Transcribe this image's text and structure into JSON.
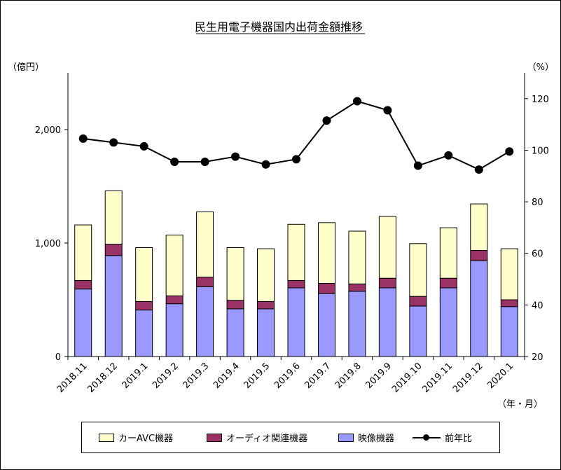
{
  "chart_data": {
    "type": "bar+line",
    "title": "民生用電子機器国内出荷金額推移",
    "y_left_unit": "（億円）",
    "y_right_unit": "（%）",
    "x_unit": "（年・月）",
    "y_left_ticks": [
      "0",
      "1,000",
      "2,000"
    ],
    "y_right_ticks": [
      "20",
      "40",
      "60",
      "80",
      "100",
      "120"
    ],
    "y_left_range": [
      0,
      2500
    ],
    "y_right_range": [
      20,
      130
    ],
    "categories": [
      "2018.11",
      "2018.12",
      "2019.1",
      "2019.2",
      "2019.3",
      "2019.4",
      "2019.5",
      "2019.6",
      "2019.7",
      "2019.8",
      "2019.9",
      "2019.10",
      "2019.11",
      "2019.12",
      "2020.1"
    ],
    "series": [
      {
        "name": "映像機器",
        "type": "bar",
        "color": "#9999ff",
        "values": [
          595,
          890,
          410,
          465,
          615,
          420,
          420,
          605,
          555,
          575,
          605,
          445,
          605,
          845,
          440
        ]
      },
      {
        "name": "オーディオ関連機器",
        "type": "bar",
        "color": "#993366",
        "values": [
          75,
          100,
          75,
          70,
          85,
          75,
          65,
          65,
          90,
          65,
          85,
          85,
          85,
          90,
          60
        ]
      },
      {
        "name": "カーAVC機器",
        "type": "bar",
        "color": "#ffffcc",
        "values": [
          490,
          470,
          475,
          535,
          575,
          465,
          465,
          495,
          535,
          465,
          545,
          465,
          445,
          410,
          450
        ]
      },
      {
        "name": "前年比",
        "type": "line",
        "axis": "right",
        "color": "#000000",
        "values": [
          104.5,
          103,
          101.5,
          95.5,
          95.5,
          97.5,
          94.5,
          96.5,
          111.5,
          119,
          115.5,
          94,
          98,
          92.5,
          99.5
        ]
      }
    ],
    "legend": {
      "position": "bottom",
      "items": [
        {
          "label": "カーAVC機器",
          "kind": "bar",
          "color": "#ffffcc"
        },
        {
          "label": "オーディオ関連機器",
          "kind": "bar",
          "color": "#993366"
        },
        {
          "label": "映像機器",
          "kind": "bar",
          "color": "#9999ff"
        },
        {
          "label": "前年比",
          "kind": "line",
          "color": "#000000"
        }
      ]
    },
    "grid": false
  }
}
